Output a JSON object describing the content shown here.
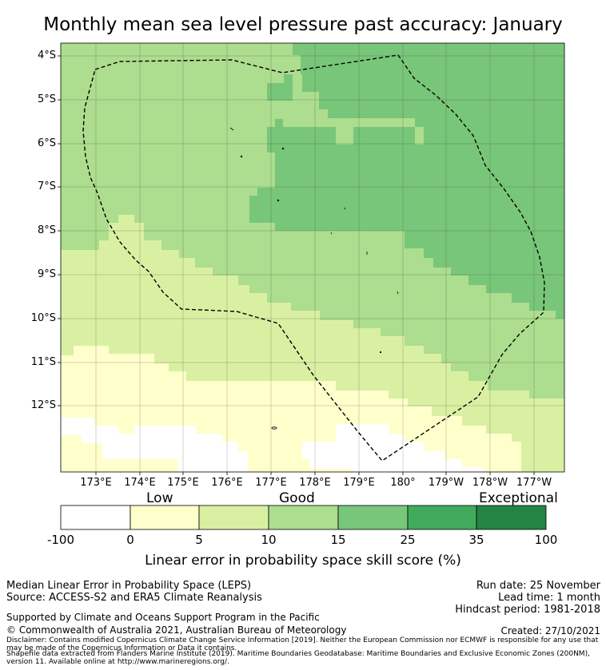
{
  "title": "Monthly mean sea level pressure past accuracy: January",
  "map": {
    "lat_labels": [
      "4°S",
      "5°S",
      "6°S",
      "7°S",
      "8°S",
      "9°S",
      "10°S",
      "11°S",
      "12°S"
    ],
    "lon_labels": [
      "173°E",
      "174°E",
      "175°E",
      "176°E",
      "177°E",
      "178°E",
      "179°E",
      "180°",
      "179°W",
      "178°W",
      "177°W"
    ],
    "grid": true,
    "boundary_style": "dashed"
  },
  "colorbar": {
    "category_labels": [
      "Low",
      "Good",
      "Exceptional"
    ],
    "ticks": [
      "-100",
      "0",
      "5",
      "10",
      "15",
      "25",
      "35",
      "100"
    ],
    "colors": [
      "#ffffff",
      "#ffffcc",
      "#d9f0a3",
      "#addd8e",
      "#78c679",
      "#41ab5d",
      "#238443"
    ],
    "title": "Linear error in probability space skill score (%)"
  },
  "footer": {
    "left_line1": "Median Linear Error in Probability Space (LEPS)",
    "left_line2": "Source: ACCESS-S2 and ERA5 Climate Reanalysis",
    "run_date": "Run date: 25 November",
    "lead_time": "Lead time: 1 month",
    "hindcast": "Hindcast period: 1981-2018",
    "supported": "Supported by Climate and Oceans Support Program in the Pacific",
    "copyright": "© Commonwealth of Australia 2021, Australian Bureau of Meteorology",
    "created": "Created: 27/10/2021",
    "disclaimer": "Disclaimer: Contains modified Copernicus Climate Change Service Information [2019]. Neither the European Commission nor ECMWF is responsible for any use that may be made of the Copernicus Information or Data it contains.",
    "shapefile": "Shapefile data extracted from Flanders Marine Institute (2019). Maritime Boundaries Geodatabase: Maritime Boundaries and Exclusive Economic Zones (200NM), version 11. Available online at http://www.marineregions.org/."
  }
}
